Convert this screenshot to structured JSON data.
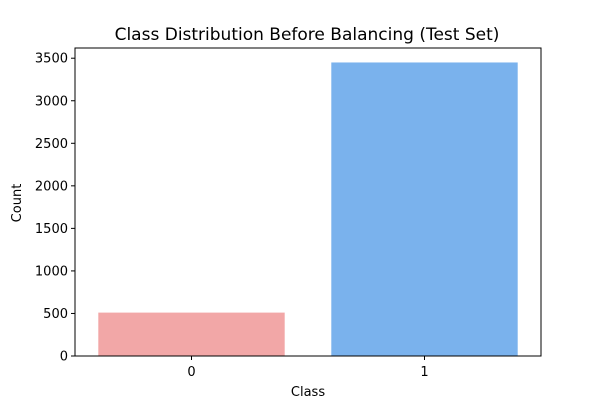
{
  "chart_data": {
    "type": "bar",
    "title": "Class Distribution Before Balancing (Test Set)",
    "xlabel": "Class",
    "ylabel": "Count",
    "categories": [
      "0",
      "1"
    ],
    "values": [
      510,
      3450
    ],
    "colors": [
      "#f2a7a7",
      "#7ab2ed"
    ],
    "ylim": [
      0,
      3620
    ],
    "yticks": [
      0,
      500,
      1000,
      1500,
      2000,
      2500,
      3000,
      3500
    ],
    "grid": false,
    "legend": "none"
  }
}
